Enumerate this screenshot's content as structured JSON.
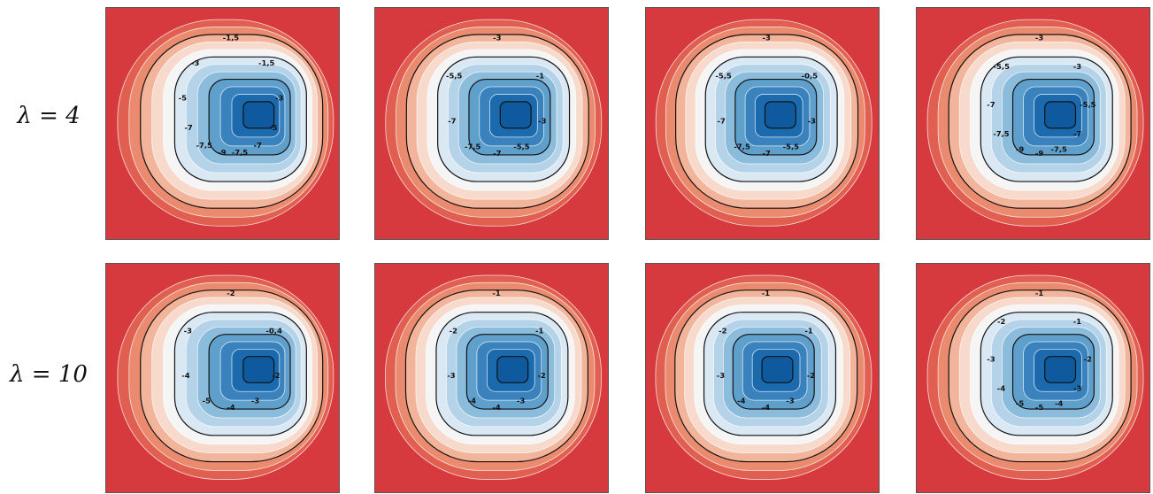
{
  "rows": [
    {
      "label": "λ = 4",
      "panels": [
        {
          "labels": [
            "-1,5",
            "-3",
            "-5",
            "-7",
            "-7,5",
            "-9",
            "-7,5",
            "-7",
            "-5",
            "-3",
            "-1,5"
          ],
          "shift": 0.12
        },
        {
          "labels": [
            "-3",
            "-5,5",
            "-7",
            "-7,5",
            "-7",
            "-5,5",
            "-3",
            "-1"
          ],
          "shift": 0.08
        },
        {
          "labels": [
            "-3",
            "-5,5",
            "-7",
            "-7,5",
            "-7",
            "-5,5",
            "-3",
            "-0,5"
          ],
          "shift": 0.06
        },
        {
          "labels": [
            "-3",
            "-5,5",
            "-7",
            "-7,5",
            "-9",
            "-9",
            "-7,5",
            "-7",
            "-5,5",
            "-3"
          ],
          "shift": 0.09
        }
      ]
    },
    {
      "label": "λ = 10",
      "panels": [
        {
          "labels": [
            "-2",
            "-3",
            "-4",
            "-5",
            "-4",
            "-3",
            "-2",
            "-0,4"
          ],
          "shift": 0.12
        },
        {
          "labels": [
            "-1",
            "-2",
            "-3",
            "-4",
            "-4",
            "-3",
            "-2",
            "-1"
          ],
          "shift": 0.07
        },
        {
          "labels": [
            "-1",
            "-2",
            "-3",
            "-4",
            "-4",
            "-3",
            "-2",
            "-1"
          ],
          "shift": 0.05
        },
        {
          "labels": [
            "-1",
            "-2",
            "-3",
            "-4",
            "-5",
            "-5",
            "-4",
            "-3",
            "-2",
            "-1"
          ],
          "shift": 0.09
        }
      ]
    }
  ]
}
